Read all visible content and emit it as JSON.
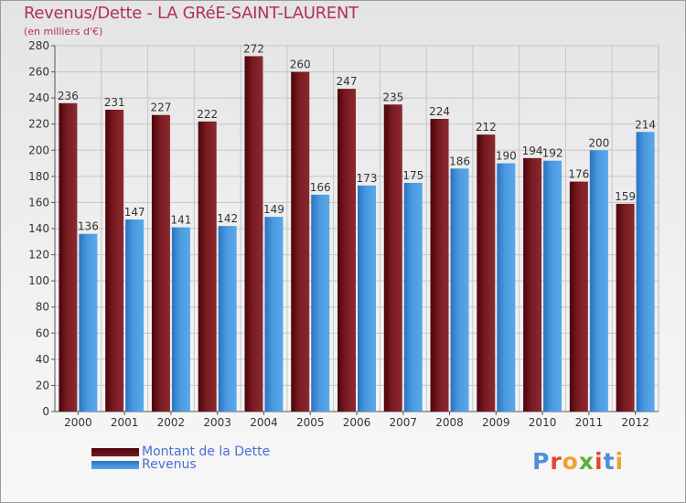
{
  "title": "Revenus/Dette - LA GRéE-SAINT-LAURENT",
  "subtitle": "(en milliers d'€)",
  "logo": {
    "text": "Proxiti",
    "letters": [
      "P",
      "r",
      "o",
      "x",
      "i",
      "t",
      "i"
    ]
  },
  "colors": {
    "dette": "#6e0f17",
    "revenus": "#3d8fd6",
    "title": "#b0305c",
    "legend_text": "#4a6fd0"
  },
  "legend": {
    "dette_label": "Montant de la Dette",
    "revenus_label": "Revenus"
  },
  "chart_data": {
    "type": "bar",
    "title": "Revenus/Dette - LA GRéE-SAINT-LAURENT",
    "ylabel": "(en milliers d'€)",
    "xlabel": "",
    "categories": [
      "2000",
      "2001",
      "2002",
      "2003",
      "2004",
      "2005",
      "2006",
      "2007",
      "2008",
      "2009",
      "2010",
      "2011",
      "2012"
    ],
    "series": [
      {
        "name": "Montant de la Dette",
        "values": [
          236,
          231,
          227,
          222,
          272,
          260,
          247,
          235,
          224,
          212,
          194,
          176,
          159
        ]
      },
      {
        "name": "Revenus",
        "values": [
          136,
          147,
          141,
          142,
          149,
          166,
          173,
          175,
          186,
          190,
          192,
          200,
          214
        ]
      }
    ],
    "ylim": [
      0,
      280
    ],
    "yticks": [
      0,
      20,
      40,
      60,
      80,
      100,
      120,
      140,
      160,
      180,
      200,
      220,
      240,
      260,
      280
    ],
    "grid": true,
    "legend_position": "bottom-left"
  }
}
